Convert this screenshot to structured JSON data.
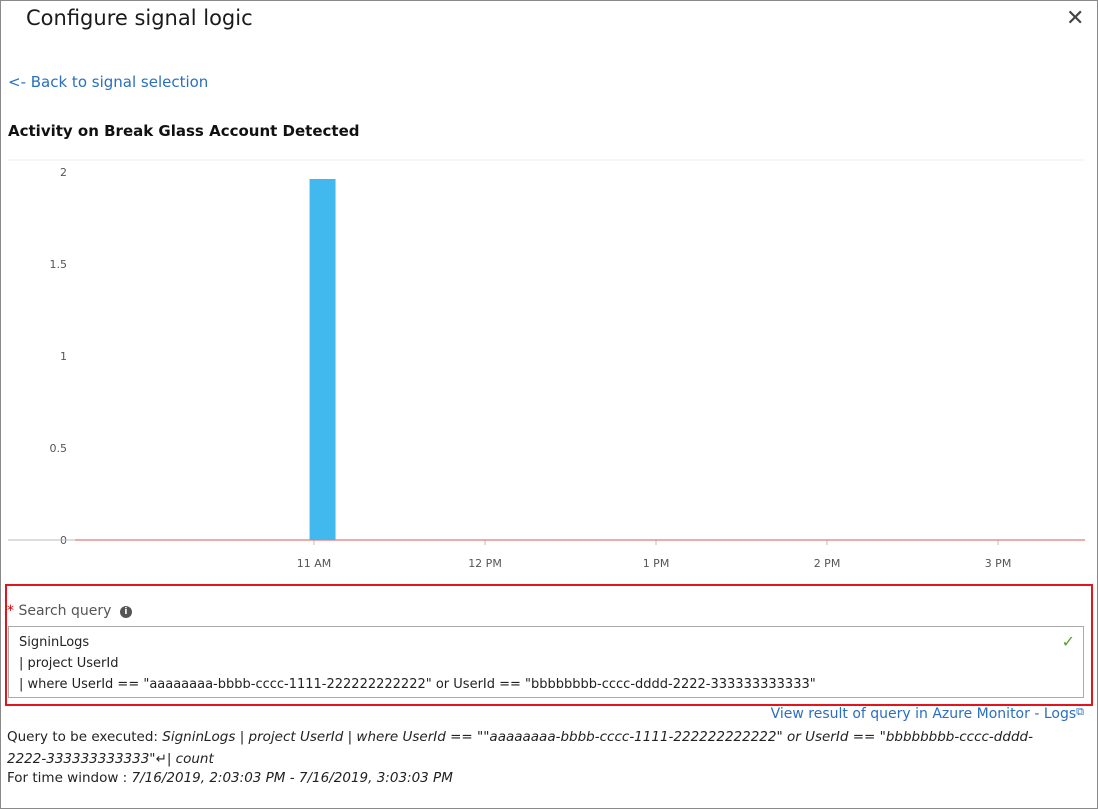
{
  "header": {
    "title": "Configure signal logic",
    "close_icon": "close-icon"
  },
  "back_link": "<- Back to signal selection",
  "chart_title": "Activity on Break Glass Account Detected",
  "chart_data": {
    "type": "bar",
    "title": "Activity on Break Glass Account Detected",
    "xlabel": "",
    "ylabel": "",
    "ylim": [
      0,
      2
    ],
    "y_ticks": [
      "0",
      "0.5",
      "1",
      "1.5",
      "2"
    ],
    "x_ticks": [
      "11 AM",
      "12 PM",
      "1 PM",
      "2 PM",
      "3 PM"
    ],
    "bars": [
      {
        "time": "11:03 AM",
        "value": 2
      }
    ],
    "bar_color": "#41b9ef",
    "baseline_color": "#e07a7a",
    "grid": false
  },
  "search_query": {
    "label": "Search query",
    "required_marker": "*",
    "info_icon": "i",
    "lines": [
      "SigninLogs",
      "| project UserId",
      "| where UserId == \"aaaaaaaa-bbbb-cccc-1111-222222222222\" or UserId == \"bbbbbbbb-cccc-dddd-2222-333333333333\""
    ],
    "valid_icon": "✓"
  },
  "view_result_link": "View result of query in Azure Monitor - Logs",
  "query_exec": {
    "label": "Query to be executed: ",
    "value": "SigninLogs | project UserId | where UserId == \"\"aaaaaaaa-bbbb-cccc-1111-222222222222\" or UserId == \"bbbbbbbb-cccc-dddd-2222-333333333333\"↵| count"
  },
  "time_window": {
    "label": "For time window : ",
    "value": "7/16/2019, 2:03:03 PM - 7/16/2019, 3:03:03 PM"
  }
}
